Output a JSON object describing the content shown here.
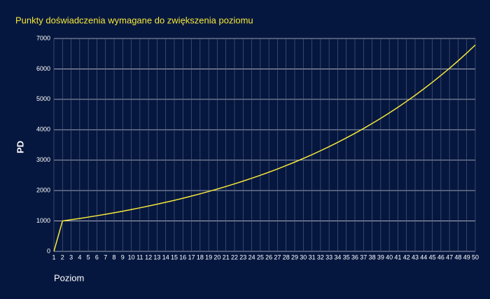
{
  "chart_data": {
    "type": "line",
    "title": "Punkty doświadczenia wymagane do zwiększenia poziomu",
    "x_label": "Poziom",
    "y_label": "PD",
    "x": [
      1,
      2,
      3,
      4,
      5,
      6,
      7,
      8,
      9,
      10,
      11,
      12,
      13,
      14,
      15,
      16,
      17,
      18,
      19,
      20,
      21,
      22,
      23,
      24,
      25,
      26,
      27,
      28,
      29,
      30,
      31,
      32,
      33,
      34,
      35,
      36,
      37,
      38,
      39,
      40,
      41,
      42,
      43,
      44,
      45,
      46,
      47,
      48,
      49,
      50
    ],
    "series": [
      {
        "name": "PD",
        "color": "#f5e83a",
        "values": [
          0,
          1000,
          1041,
          1083,
          1127,
          1173,
          1221,
          1270,
          1322,
          1376,
          1432,
          1490,
          1551,
          1614,
          1679,
          1748,
          1819,
          1893,
          1970,
          2050,
          2134,
          2221,
          2311,
          2405,
          2503,
          2605,
          2711,
          2821,
          2936,
          3056,
          3180,
          3310,
          3444,
          3585,
          3731,
          3882,
          4040,
          4205,
          4376,
          4554,
          4739,
          4932,
          5133,
          5342,
          5559,
          5786,
          6021,
          6266,
          6521,
          6787
        ]
      }
    ],
    "xlim": [
      1,
      50
    ],
    "xticks": [
      1,
      2,
      3,
      4,
      5,
      6,
      7,
      8,
      9,
      10,
      11,
      12,
      13,
      14,
      15,
      16,
      17,
      18,
      19,
      20,
      21,
      22,
      23,
      24,
      25,
      26,
      27,
      28,
      29,
      30,
      31,
      32,
      33,
      34,
      35,
      36,
      37,
      38,
      39,
      40,
      41,
      42,
      43,
      44,
      45,
      46,
      47,
      48,
      49,
      50
    ],
    "ylim": [
      0,
      7000
    ],
    "yticks": [
      0,
      1000,
      2000,
      3000,
      4000,
      5000,
      6000,
      7000
    ],
    "grid": true
  }
}
